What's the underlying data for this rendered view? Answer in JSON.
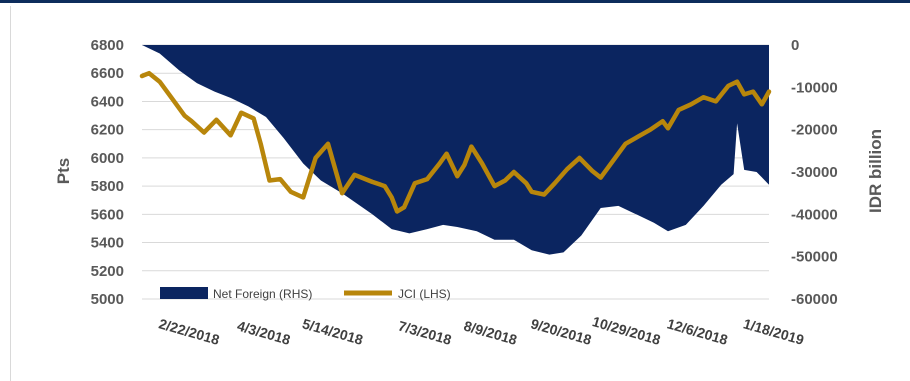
{
  "chart_data": {
    "type": "area+line",
    "title": "",
    "ylabel_left": "Pts",
    "ylabel_right": "IDR billion",
    "ylim_left": [
      5000,
      6800
    ],
    "ylim_right": [
      -60000,
      0
    ],
    "yticks_left": [
      "6800",
      "6600",
      "6400",
      "6200",
      "6000",
      "5800",
      "5600",
      "5400",
      "5200",
      "5000"
    ],
    "yticks_right": [
      "0",
      "-10000",
      "-20000",
      "-30000",
      "-40000",
      "-50000",
      "-60000"
    ],
    "xticks": [
      "2/22/2018",
      "4/3/2018",
      "5/14/2018",
      "7/3/2018",
      "8/9/2018",
      "9/20/2018",
      "10/29/2018",
      "12/6/2018",
      "1/18/2019"
    ],
    "grid": "horizontal",
    "legend_position": "bottom-left",
    "series": [
      {
        "name": "Net Foreign (RHS)",
        "type": "area",
        "axis": "right",
        "color": "#0b2560",
        "x": [
          "2/12/2018",
          "2/22/2018",
          "3/5/2018",
          "3/15/2018",
          "3/25/2018",
          "4/3/2018",
          "4/13/2018",
          "4/23/2018",
          "5/3/2018",
          "5/14/2018",
          "5/24/2018",
          "6/5/2018",
          "6/22/2018",
          "7/3/2018",
          "7/13/2018",
          "7/23/2018",
          "8/1/2018",
          "8/9/2018",
          "8/20/2018",
          "8/30/2018",
          "9/10/2018",
          "9/20/2018",
          "9/30/2018",
          "10/8/2018",
          "10/18/2018",
          "10/29/2018",
          "11/8/2018",
          "11/18/2018",
          "11/28/2018",
          "12/6/2018",
          "12/16/2018",
          "12/26/2018",
          "1/5/2019",
          "1/12/2019",
          "1/14/2019",
          "1/18/2019",
          "1/25/2019",
          "2/1/2019"
        ],
        "values": [
          0,
          -2000,
          -6000,
          -9000,
          -11000,
          -12500,
          -14500,
          -17000,
          -22000,
          -28000,
          -32000,
          -35000,
          -40000,
          -43500,
          -44500,
          -43500,
          -42500,
          -43000,
          -44000,
          -46000,
          -46000,
          -48500,
          -49500,
          -49000,
          -45000,
          -38500,
          -38000,
          -40000,
          -42000,
          -44000,
          -42500,
          -38000,
          -33000,
          -30500,
          -18500,
          -29500,
          -30000,
          -33000
        ]
      },
      {
        "name": "JCI (LHS)",
        "type": "line",
        "axis": "left",
        "color": "#b8860b",
        "x": [
          "2/12/2018",
          "2/16/2018",
          "2/22/2018",
          "3/1/2018",
          "3/8/2018",
          "3/12/2018",
          "3/19/2018",
          "3/26/2018",
          "4/3/2018",
          "4/9/2018",
          "4/16/2018",
          "4/20/2018",
          "4/25/2018",
          "5/1/2018",
          "5/7/2018",
          "5/14/2018",
          "5/21/2018",
          "5/28/2018",
          "6/5/2018",
          "6/12/2018",
          "6/22/2018",
          "6/29/2018",
          "7/3/2018",
          "7/6/2018",
          "7/10/2018",
          "7/16/2018",
          "7/23/2018",
          "7/30/2018",
          "8/3/2018",
          "8/9/2018",
          "8/13/2018",
          "8/17/2018",
          "8/23/2018",
          "8/30/2018",
          "9/5/2018",
          "9/10/2018",
          "9/17/2018",
          "9/20/2018",
          "9/27/2018",
          "10/3/2018",
          "10/10/2018",
          "10/17/2018",
          "10/24/2018",
          "10/29/2018",
          "11/5/2018",
          "11/12/2018",
          "11/19/2018",
          "11/26/2018",
          "12/3/2018",
          "12/6/2018",
          "12/12/2018",
          "12/19/2018",
          "12/26/2018",
          "1/2/2019",
          "1/9/2019",
          "1/14/2019",
          "1/18/2019",
          "1/23/2019",
          "1/28/2019",
          "2/1/2019"
        ],
        "values": [
          6580,
          6600,
          6540,
          6420,
          6300,
          6260,
          6180,
          6270,
          6160,
          6320,
          6280,
          6100,
          5840,
          5850,
          5760,
          5720,
          6000,
          6100,
          5750,
          5880,
          5830,
          5800,
          5720,
          5620,
          5650,
          5820,
          5850,
          5960,
          6030,
          5870,
          5950,
          6080,
          5960,
          5800,
          5840,
          5900,
          5820,
          5760,
          5740,
          5820,
          5920,
          6000,
          5910,
          5860,
          5980,
          6100,
          6150,
          6200,
          6260,
          6210,
          6340,
          6380,
          6430,
          6400,
          6510,
          6540,
          6450,
          6470,
          6380,
          6470
        ]
      }
    ]
  }
}
